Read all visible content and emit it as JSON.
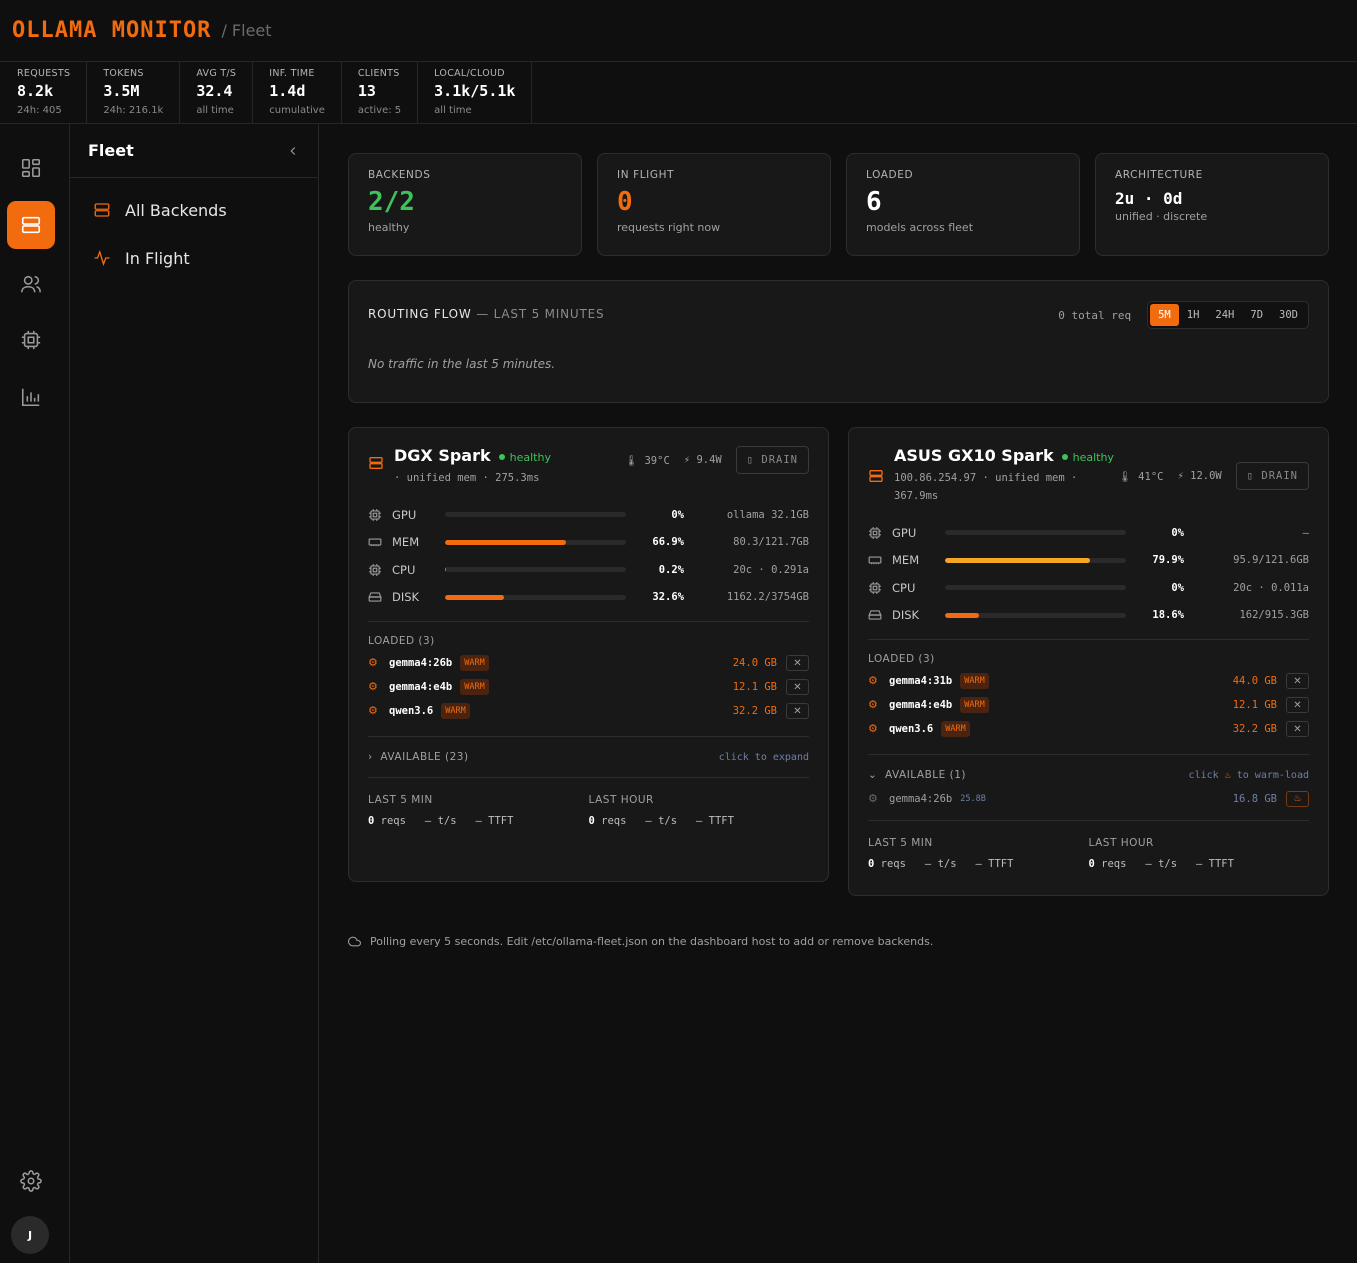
{
  "app": {
    "brand": "OLLAMA MONITOR",
    "crumb": "/ Fleet"
  },
  "stats": [
    {
      "label": "REQUESTS",
      "value": "8.2k",
      "sub": "24h: 405"
    },
    {
      "label": "TOKENS",
      "value": "3.5M",
      "sub": "24h: 216.1k"
    },
    {
      "label": "AVG T/S",
      "value": "32.4",
      "sub": "all time"
    },
    {
      "label": "INF. TIME",
      "value": "1.4d",
      "sub": "cumulative"
    },
    {
      "label": "CLIENTS",
      "value": "13",
      "sub": "active: 5"
    },
    {
      "label": "LOCAL/CLOUD",
      "value": "3.1k/5.1k",
      "sub": "all time"
    }
  ],
  "rail": {
    "avatar": "J"
  },
  "nav": {
    "title": "Fleet",
    "items": [
      {
        "label": "All Backends"
      },
      {
        "label": "In Flight"
      }
    ]
  },
  "cards": [
    {
      "label": "BACKENDS",
      "value": "2/2",
      "sub": "healthy",
      "color": "#3cc35a"
    },
    {
      "label": "IN FLIGHT",
      "value": "0",
      "sub": "requests right now",
      "color": "#f26b0f"
    },
    {
      "label": "LOADED",
      "value": "6",
      "sub": "models across fleet",
      "color": "#ffffff"
    },
    {
      "label": "ARCHITECTURE",
      "value": "2u · 0d",
      "sub": "unified · discrete",
      "color": "#ffffff"
    }
  ],
  "routing": {
    "title": "ROUTING FLOW",
    "title_suffix": "— LAST 5 MINUTES",
    "total": "0 total req",
    "ranges": [
      "5M",
      "1H",
      "24H",
      "7D",
      "30D"
    ],
    "selected_range": "5M",
    "empty": "No traffic in the last 5 minutes."
  },
  "backends": [
    {
      "name": "DGX Spark",
      "status": "healthy",
      "meta": "· unified mem · 275.3ms",
      "temp": "39°C",
      "power": "9.4W",
      "drain_label": "DRAIN",
      "metrics": [
        {
          "name": "GPU",
          "pct": "0%",
          "fill": 0,
          "detail": "ollama 32.1GB",
          "color": "#f26b0f"
        },
        {
          "name": "MEM",
          "pct": "66.9%",
          "fill": 66.9,
          "detail": "80.3/121.7GB",
          "color": "#f26b0f"
        },
        {
          "name": "CPU",
          "pct": "0.2%",
          "fill": 0.2,
          "detail": "20c · 0.291a",
          "color": "#f26b0f"
        },
        {
          "name": "DISK",
          "pct": "32.6%",
          "fill": 32.6,
          "detail": "1162.2/3754GB",
          "color": "#f26b0f"
        }
      ],
      "loaded_title": "LOADED (3)",
      "loaded": [
        {
          "name": "gemma4:26b",
          "tag": "WARM",
          "size": "24.0 GB"
        },
        {
          "name": "gemma4:e4b",
          "tag": "WARM",
          "size": "12.1 GB"
        },
        {
          "name": "qwen3.6",
          "tag": "WARM",
          "size": "32.2 GB"
        }
      ],
      "available_title": "AVAILABLE (23)",
      "available_hint": "click to expand",
      "window_5m": {
        "label": "LAST 5 MIN",
        "reqs": "0",
        "reqs_unit": "reqs",
        "ts": "— t/s",
        "ttft": "— TTFT"
      },
      "window_1h": {
        "label": "LAST HOUR",
        "reqs": "0",
        "reqs_unit": "reqs",
        "ts": "— t/s",
        "ttft": "— TTFT"
      }
    },
    {
      "name": "ASUS GX10 Spark",
      "status": "healthy",
      "meta": "100.86.254.97 · unified mem ·",
      "meta2": "367.9ms",
      "temp": "41°C",
      "power": "12.0W",
      "drain_label": "DRAIN",
      "metrics": [
        {
          "name": "GPU",
          "pct": "0%",
          "fill": 0,
          "detail": "—",
          "color": "#f5a623"
        },
        {
          "name": "MEM",
          "pct": "79.9%",
          "fill": 79.9,
          "detail": "95.9/121.6GB",
          "color": "#f5a623"
        },
        {
          "name": "CPU",
          "pct": "0%",
          "fill": 0,
          "detail": "20c · 0.011a",
          "color": "#f26b0f"
        },
        {
          "name": "DISK",
          "pct": "18.6%",
          "fill": 18.6,
          "detail": "162/915.3GB",
          "color": "#f26b0f"
        }
      ],
      "loaded_title": "LOADED (3)",
      "loaded": [
        {
          "name": "gemma4:31b",
          "tag": "WARM",
          "size": "44.0 GB"
        },
        {
          "name": "gemma4:e4b",
          "tag": "WARM",
          "size": "12.1 GB"
        },
        {
          "name": "qwen3.6",
          "tag": "WARM",
          "size": "32.2 GB"
        }
      ],
      "available_title": "AVAILABLE (1)",
      "available_hint_pre": "click",
      "available_hint_post": "to warm-load",
      "available_models": [
        {
          "name": "gemma4:26b",
          "params": "25.8B",
          "size": "16.8 GB"
        }
      ],
      "window_5m": {
        "label": "LAST 5 MIN",
        "reqs": "0",
        "reqs_unit": "reqs",
        "ts": "— t/s",
        "ttft": "— TTFT"
      },
      "window_1h": {
        "label": "LAST HOUR",
        "reqs": "0",
        "reqs_unit": "reqs",
        "ts": "— t/s",
        "ttft": "— TTFT"
      }
    }
  ],
  "footer": "Polling every 5 seconds. Edit /etc/ollama-fleet.json on the dashboard host to add or remove backends."
}
